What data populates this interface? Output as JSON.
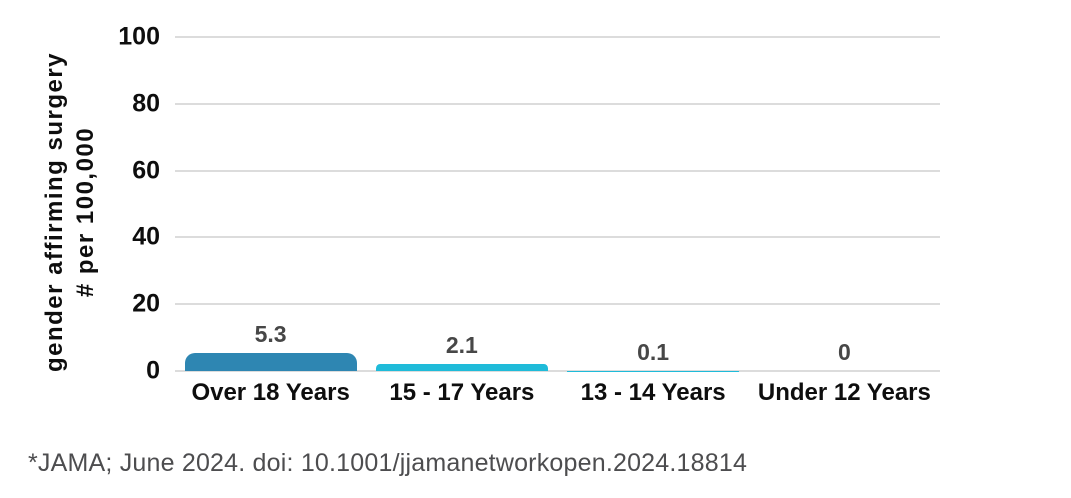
{
  "chart_data": {
    "type": "bar",
    "title": "",
    "categories": [
      "Over 18 Years",
      "15 - 17 Years",
      "13 - 14 Years",
      "Under 12 Years"
    ],
    "values": [
      5.3,
      2.1,
      0.1,
      0
    ],
    "value_labels": [
      "5.3",
      "2.1",
      "0.1",
      "0"
    ],
    "bar_colors": [
      "#2E86B2",
      "#1FBBD9",
      "#1FBBD9",
      "#1FBBD9"
    ],
    "ylabel_line1": "gender affirming surgery",
    "ylabel_line2": "# per 100,000",
    "xlabel": "",
    "ylim": [
      0,
      100
    ],
    "yticks": [
      0,
      20,
      40,
      60,
      80,
      100
    ],
    "grid": true,
    "legend": false,
    "gridline_color": "#dcdcdc",
    "value_label_color": "#474747",
    "axis_text_color": "#0e0e0e"
  },
  "footer": {
    "text": "*JAMA; June 2024. doi: 10.1001/jjamanetworkopen.2024.18814"
  }
}
